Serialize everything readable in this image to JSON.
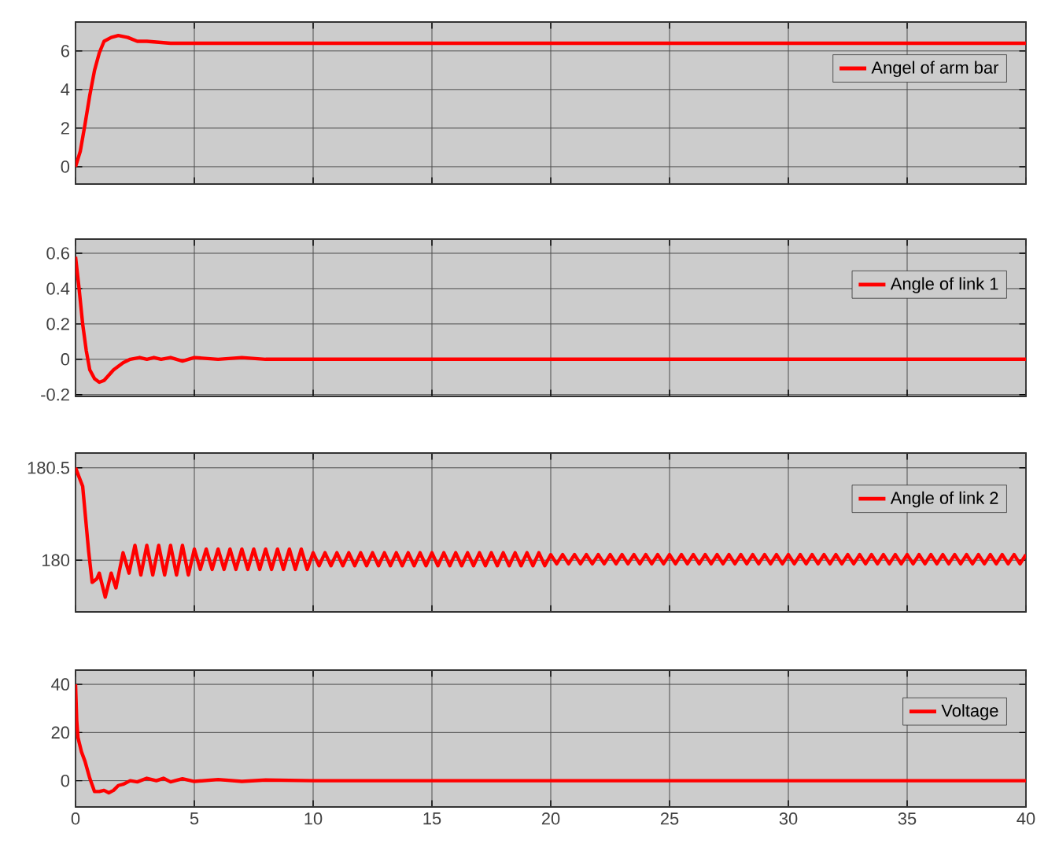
{
  "chart_data": [
    {
      "type": "line",
      "x": [
        0,
        0.2,
        0.4,
        0.6,
        0.8,
        1.0,
        1.2,
        1.5,
        1.8,
        2.2,
        2.6,
        3.0,
        4,
        6,
        10,
        15,
        20,
        25,
        30,
        35,
        40
      ],
      "series": [
        {
          "name": "Angel of arm bar",
          "color": "#ff0000",
          "values": [
            0,
            0.8,
            2.2,
            3.7,
            5.0,
            5.9,
            6.5,
            6.7,
            6.8,
            6.7,
            6.5,
            6.5,
            6.4,
            6.4,
            6.4,
            6.4,
            6.4,
            6.4,
            6.4,
            6.4,
            6.4
          ]
        }
      ],
      "xlim": [
        0,
        40
      ],
      "xticks": [
        0,
        5,
        10,
        15,
        20,
        25,
        30,
        35,
        40
      ],
      "ylim": [
        -0.9,
        7.5
      ],
      "yticks": [
        0,
        2,
        4,
        6
      ],
      "grid": true,
      "legend": "top right",
      "tick_labels": "y"
    },
    {
      "type": "line",
      "x": [
        0,
        0.15,
        0.3,
        0.45,
        0.6,
        0.8,
        1.0,
        1.2,
        1.4,
        1.6,
        1.8,
        2.0,
        2.3,
        2.7,
        3.0,
        3.3,
        3.6,
        4,
        4.5,
        5,
        6,
        7,
        8,
        10,
        15,
        20,
        25,
        30,
        35,
        40
      ],
      "series": [
        {
          "name": "Angle of link 1",
          "color": "#ff0000",
          "values": [
            0.58,
            0.4,
            0.2,
            0.05,
            -0.06,
            -0.11,
            -0.13,
            -0.12,
            -0.09,
            -0.06,
            -0.04,
            -0.02,
            0,
            0.01,
            0,
            0.01,
            0,
            0.01,
            -0.01,
            0.01,
            0,
            0.01,
            0,
            0,
            0,
            0,
            0,
            0,
            0,
            0
          ]
        }
      ],
      "xlim": [
        0,
        40
      ],
      "xticks": [
        0,
        5,
        10,
        15,
        20,
        25,
        30,
        35,
        40
      ],
      "ylim": [
        -0.21,
        0.68
      ],
      "yticks": [
        -0.2,
        0,
        0.2,
        0.4,
        0.6
      ],
      "grid": true,
      "legend": "top right",
      "tick_labels": "y"
    },
    {
      "type": "line",
      "x": [
        0,
        0.3,
        0.55,
        0.7,
        0.9,
        1.0,
        1.25,
        1.5,
        1.7,
        2.0,
        2.25,
        2.5,
        2.75,
        3,
        3.25,
        3.5,
        3.75,
        4,
        4.25,
        4.5,
        4.75,
        5,
        5.25,
        5.5,
        5.75,
        6,
        6.25,
        6.5,
        6.75,
        7,
        7.25,
        7.5,
        7.75,
        8,
        8.25,
        8.5,
        8.75,
        9,
        9.25,
        9.5,
        9.75,
        10,
        10.25,
        10.5,
        10.75,
        11,
        11.25,
        11.5,
        11.75,
        12,
        12.25,
        12.5,
        12.75,
        13,
        13.25,
        13.5,
        13.75,
        14,
        14.25,
        14.5,
        14.75,
        15,
        15.25,
        15.5,
        15.75,
        16,
        16.25,
        16.5,
        16.75,
        17,
        17.25,
        17.5,
        17.75,
        18,
        18.25,
        18.5,
        18.75,
        19,
        19.25,
        19.5,
        19.75,
        20,
        20.25,
        20.5,
        20.75,
        21,
        21.25,
        21.5,
        21.75,
        22,
        22.25,
        22.5,
        22.75,
        23,
        23.25,
        23.5,
        23.75,
        24,
        24.25,
        24.5,
        24.75,
        25,
        25.25,
        25.5,
        25.75,
        26,
        26.25,
        26.5,
        26.75,
        27,
        27.25,
        27.5,
        27.75,
        28,
        28.25,
        28.5,
        28.75,
        29,
        29.25,
        29.5,
        29.75,
        30,
        30.25,
        30.5,
        30.75,
        31,
        31.25,
        31.5,
        31.75,
        32,
        32.25,
        32.5,
        32.75,
        33,
        33.25,
        33.5,
        33.75,
        34,
        34.25,
        34.5,
        34.75,
        35,
        35.25,
        35.5,
        35.75,
        36,
        36.25,
        36.5,
        36.75,
        37,
        37.25,
        37.5,
        37.75,
        38,
        38.25,
        38.5,
        38.75,
        39,
        39.25,
        39.5,
        39.75,
        40
      ],
      "series": [
        {
          "name": "Angle of link 2",
          "color": "#ff0000",
          "values": [
            180.5,
            180.4,
            180.05,
            179.88,
            179.9,
            179.93,
            179.8,
            179.93,
            179.85,
            180.04,
            179.93,
            180.08,
            179.92,
            180.08,
            179.92,
            180.08,
            179.92,
            180.08,
            179.92,
            180.08,
            179.92,
            180.06,
            179.95,
            180.06,
            179.95,
            180.06,
            179.95,
            180.06,
            179.95,
            180.06,
            179.95,
            180.06,
            179.95,
            180.06,
            179.95,
            180.06,
            179.95,
            180.06,
            179.95,
            180.06,
            179.95,
            180.04,
            179.97,
            180.04,
            179.97,
            180.04,
            179.97,
            180.04,
            179.97,
            180.04,
            179.97,
            180.04,
            179.97,
            180.04,
            179.97,
            180.04,
            179.97,
            180.04,
            179.97,
            180.04,
            179.97,
            180.04,
            179.97,
            180.04,
            179.97,
            180.04,
            179.97,
            180.04,
            179.97,
            180.04,
            179.97,
            180.04,
            179.97,
            180.04,
            179.97,
            180.04,
            179.97,
            180.04,
            179.97,
            180.04,
            179.97,
            180.03,
            179.98,
            180.03,
            179.98,
            180.03,
            179.98,
            180.03,
            179.98,
            180.03,
            179.98,
            180.03,
            179.98,
            180.03,
            179.98,
            180.03,
            179.98,
            180.03,
            179.98,
            180.03,
            179.98,
            180.03,
            179.98,
            180.03,
            179.98,
            180.03,
            179.98,
            180.03,
            179.98,
            180.03,
            179.98,
            180.03,
            179.98,
            180.03,
            179.98,
            180.03,
            179.98,
            180.03,
            179.98,
            180.03,
            179.98,
            180.03,
            179.98,
            180.03,
            179.98,
            180.03,
            179.98,
            180.03,
            179.98,
            180.03,
            179.98,
            180.03,
            179.98,
            180.03,
            179.98,
            180.03,
            179.98,
            180.03,
            179.98,
            180.03,
            179.98,
            180.03,
            179.98,
            180.03,
            179.98,
            180.03,
            179.98,
            180.03,
            179.98,
            180.03,
            179.98,
            180.03,
            179.98,
            180.03,
            179.98,
            180.03,
            179.98,
            180.03,
            179.98,
            180.03,
            179.98,
            180.03
          ]
        }
      ],
      "xlim": [
        0,
        40
      ],
      "xticks": [
        0,
        5,
        10,
        15,
        20,
        25,
        30,
        35,
        40
      ],
      "ylim": [
        179.72,
        180.58
      ],
      "yticks": [
        180,
        180.5
      ],
      "grid": true,
      "legend": "top right",
      "tick_labels": "y"
    },
    {
      "type": "line",
      "x": [
        0,
        0.05,
        0.1,
        0.25,
        0.4,
        0.6,
        0.8,
        1.0,
        1.2,
        1.4,
        1.6,
        1.8,
        2.0,
        2.3,
        2.6,
        3.0,
        3.4,
        3.7,
        4.0,
        4.5,
        5,
        6,
        7,
        8,
        10,
        15,
        20,
        25,
        30,
        35,
        40
      ],
      "series": [
        {
          "name": "Voltage",
          "color": "#ff0000",
          "values": [
            40,
            25,
            18,
            12,
            8,
            1,
            -4.5,
            -4.5,
            -4,
            -5,
            -4,
            -2,
            -1.5,
            0,
            -0.5,
            1,
            0,
            1,
            -0.5,
            0.8,
            -0.3,
            0.5,
            -0.3,
            0.3,
            0,
            0,
            0,
            0,
            0,
            0,
            0
          ]
        }
      ],
      "xlim": [
        0,
        40
      ],
      "xticks": [
        0,
        5,
        10,
        15,
        20,
        25,
        30,
        35,
        40
      ],
      "ylim": [
        -10.9,
        45.9
      ],
      "yticks": [
        0,
        20,
        40
      ],
      "grid": true,
      "legend": "top right"
    }
  ]
}
